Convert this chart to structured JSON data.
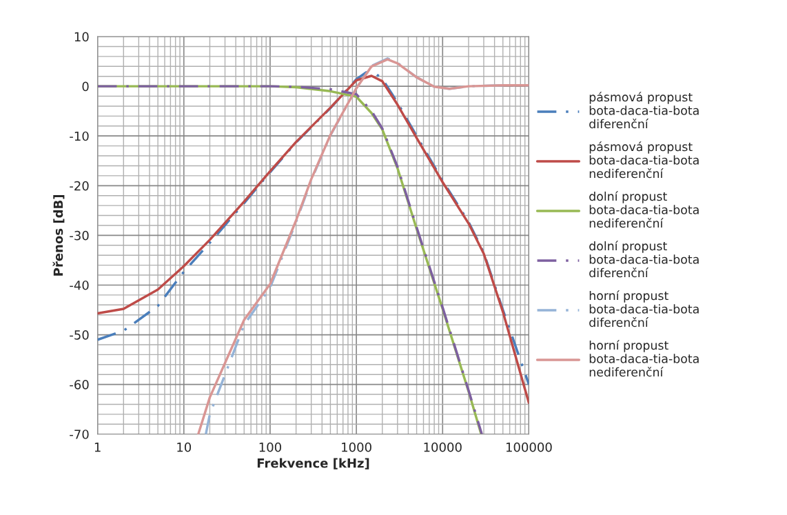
{
  "chart_data": {
    "type": "line",
    "xlabel": "Frekvence [kHz]",
    "ylabel": "Přenos [dB]",
    "log": "x",
    "xlim": [
      1,
      100000
    ],
    "xticks": [
      1,
      10,
      100,
      1000,
      10000,
      100000
    ],
    "ylim": [
      -70,
      10
    ],
    "yticks": [
      -70,
      -60,
      -50,
      -40,
      -30,
      -20,
      -10,
      0,
      10
    ],
    "grid": true,
    "legend": "right",
    "series": [
      {
        "name": "pásmová propust bota-daca-tia-bota diferenční",
        "color": "#4a7ebb",
        "line_style": "dashdot",
        "x": [
          1,
          2,
          5,
          10,
          20,
          50,
          100,
          200,
          500,
          1000,
          1300,
          1600,
          2000,
          3000,
          5000,
          10000,
          20000,
          30000,
          50000,
          100000
        ],
        "values": [
          -51,
          -49.2,
          -44.2,
          -37.3,
          -31.5,
          -23.5,
          -17.3,
          -11.3,
          -4.4,
          1.4,
          2.8,
          2.8,
          1.5,
          -3.3,
          -10.0,
          -19.0,
          -27.3,
          -33.5,
          -45.0,
          -60.0
        ]
      },
      {
        "name": "pásmová propust bota-daca-tia-bota nediferenční",
        "color": "#be4b48",
        "line_style": "solid",
        "x": [
          1,
          2,
          5,
          10,
          20,
          50,
          100,
          200,
          500,
          1000,
          1500,
          2000,
          3000,
          5000,
          10000,
          20000,
          30000,
          50000,
          100000
        ],
        "values": [
          -45.7,
          -44.8,
          -40.9,
          -36.2,
          -30.9,
          -23.2,
          -17.1,
          -11.2,
          -4.3,
          1.2,
          2.1,
          1.0,
          -3.7,
          -10.4,
          -19.3,
          -27.6,
          -33.7,
          -45.4,
          -63.7
        ]
      },
      {
        "name": "dolní propust bota-daca-tia-bota nediferenční",
        "color": "#98b954",
        "line_style": "solid",
        "x": [
          1,
          10,
          100,
          200,
          500,
          1000,
          1500,
          2000,
          3000,
          5000,
          10000,
          20000,
          28000
        ],
        "values": [
          0,
          0,
          0,
          -0.2,
          -1.0,
          -2.1,
          -5.4,
          -8.7,
          -16.5,
          -28.7,
          -44.8,
          -61.4,
          -70
        ]
      },
      {
        "name": "dolní propust bota-daca-tia-bota diferenční",
        "color": "#7d60a0",
        "line_style": "dashdot",
        "x": [
          1,
          10,
          100,
          200,
          500,
          1000,
          1500,
          2000,
          3000,
          5000,
          10000,
          20000,
          28500
        ],
        "values": [
          0,
          0,
          0,
          -0.1,
          -0.6,
          -1.6,
          -5.0,
          -8.5,
          -16.2,
          -28.4,
          -44.5,
          -61.2,
          -70
        ]
      },
      {
        "name": "horní propust bota-daca-tia-bota diferenční",
        "color": "#95b3d7",
        "line_style": "dashdot",
        "x": [
          18,
          20,
          50,
          100,
          200,
          300,
          500,
          1000,
          1500,
          2300,
          3000,
          5000,
          8000,
          12000,
          20000,
          50000,
          100000
        ],
        "values": [
          -70,
          -66,
          -48,
          -40.5,
          -27.3,
          -18.9,
          -9.9,
          -0.4,
          4.1,
          5.6,
          4.7,
          1.8,
          -0.1,
          -0.5,
          0,
          0.2,
          0.2
        ]
      },
      {
        "name": "horní propust bota-daca-tia-bota nediferenční",
        "color": "#d99694",
        "line_style": "solid",
        "x": [
          14.7,
          20,
          50,
          100,
          200,
          300,
          500,
          1000,
          1500,
          2300,
          3000,
          5000,
          8000,
          12000,
          20000,
          50000,
          100000
        ],
        "values": [
          -70,
          -62.6,
          -47,
          -39.8,
          -27,
          -18.7,
          -9.8,
          -0.4,
          4.0,
          5.4,
          4.6,
          1.8,
          -0.1,
          -0.5,
          0,
          0.2,
          0.2
        ]
      }
    ]
  }
}
